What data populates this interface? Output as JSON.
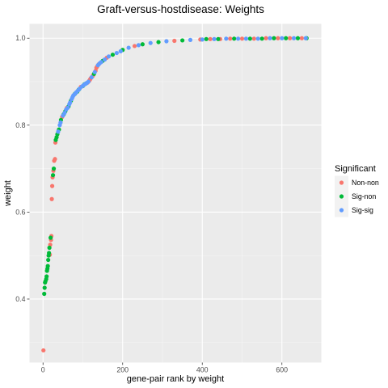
{
  "chart_data": {
    "type": "scatter",
    "title": "Graft-versus-hostdisease: Weights",
    "xlabel": "gene-pair rank by weight",
    "ylabel": "weight",
    "xlim": [
      -34,
      699
    ],
    "ylim": [
      0.254,
      1.033
    ],
    "xticks": [
      0,
      200,
      400,
      600
    ],
    "xtick_labels": [
      "0",
      "200",
      "400",
      "600"
    ],
    "yticks": [
      0.4,
      0.6,
      0.8,
      1.0
    ],
    "ytick_labels": [
      "0.4",
      "0.6",
      "0.8",
      "1.0"
    ],
    "grid": true,
    "panel_background": "#ebebeb",
    "legend": {
      "title": "Significant",
      "position": "right",
      "entries": [
        {
          "label": "Non-non",
          "color": "#f8766d"
        },
        {
          "label": "Sig-non",
          "color": "#00ba38"
        },
        {
          "label": "Sig-sig",
          "color": "#619cff"
        }
      ]
    },
    "series": [
      {
        "name": "Non-non",
        "color": "#f8766d",
        "points": [
          [
            1,
            0.282
          ],
          [
            17,
            0.502
          ],
          [
            18,
            0.525
          ],
          [
            20,
            0.536
          ],
          [
            21,
            0.545
          ],
          [
            22,
            0.63
          ],
          [
            23,
            0.66
          ],
          [
            24,
            0.68
          ],
          [
            26,
            0.695
          ],
          [
            28,
            0.718
          ],
          [
            30,
            0.722
          ],
          [
            31,
            0.76
          ],
          [
            48,
            0.819
          ],
          [
            60,
            0.84
          ],
          [
            95,
            0.888
          ],
          [
            112,
            0.898
          ],
          [
            116,
            0.902
          ],
          [
            118,
            0.905
          ],
          [
            120,
            0.908
          ],
          [
            124,
            0.912
          ],
          [
            126,
            0.915
          ],
          [
            132,
            0.925
          ],
          [
            134,
            0.932
          ],
          [
            136,
            0.935
          ],
          [
            140,
            0.94
          ],
          [
            160,
            0.955
          ],
          [
            230,
            0.982
          ],
          [
            330,
            0.994
          ],
          [
            395,
            0.997
          ],
          [
            420,
            0.998
          ],
          [
            445,
            0.998
          ],
          [
            470,
            0.999
          ],
          [
            500,
            0.999
          ],
          [
            530,
            0.999
          ],
          [
            560,
            1.0
          ],
          [
            590,
            1.0
          ],
          [
            620,
            1.0
          ],
          [
            650,
            1.0
          ]
        ]
      },
      {
        "name": "Sig-non",
        "color": "#00ba38",
        "points": [
          [
            3,
            0.412
          ],
          [
            4,
            0.426
          ],
          [
            5,
            0.438
          ],
          [
            6,
            0.441
          ],
          [
            8,
            0.446
          ],
          [
            9,
            0.452
          ],
          [
            10,
            0.465
          ],
          [
            11,
            0.47
          ],
          [
            12,
            0.476
          ],
          [
            13,
            0.49
          ],
          [
            14,
            0.5
          ],
          [
            15,
            0.506
          ],
          [
            16,
            0.518
          ],
          [
            19,
            0.541
          ],
          [
            25,
            0.685
          ],
          [
            27,
            0.7
          ],
          [
            32,
            0.766
          ],
          [
            34,
            0.772
          ],
          [
            36,
            0.779
          ],
          [
            40,
            0.79
          ],
          [
            45,
            0.812
          ],
          [
            52,
            0.825
          ],
          [
            56,
            0.832
          ],
          [
            64,
            0.843
          ],
          [
            70,
            0.856
          ],
          [
            80,
            0.872
          ],
          [
            86,
            0.877
          ],
          [
            90,
            0.882
          ],
          [
            100,
            0.89
          ],
          [
            104,
            0.894
          ],
          [
            108,
            0.896
          ],
          [
            128,
            0.918
          ],
          [
            150,
            0.948
          ],
          [
            175,
            0.962
          ],
          [
            200,
            0.973
          ],
          [
            250,
            0.986
          ],
          [
            290,
            0.991
          ],
          [
            350,
            0.995
          ],
          [
            410,
            0.998
          ],
          [
            440,
            0.998
          ],
          [
            480,
            0.999
          ],
          [
            520,
            0.999
          ],
          [
            550,
            0.999
          ],
          [
            580,
            1.0
          ],
          [
            610,
            1.0
          ],
          [
            640,
            1.0
          ],
          [
            662,
            1.0
          ]
        ]
      },
      {
        "name": "Sig-sig",
        "color": "#619cff",
        "points": [
          [
            38,
            0.785
          ],
          [
            42,
            0.8
          ],
          [
            44,
            0.806
          ],
          [
            50,
            0.822
          ],
          [
            54,
            0.828
          ],
          [
            58,
            0.836
          ],
          [
            62,
            0.84
          ],
          [
            66,
            0.848
          ],
          [
            68,
            0.852
          ],
          [
            72,
            0.86
          ],
          [
            74,
            0.864
          ],
          [
            76,
            0.868
          ],
          [
            78,
            0.87
          ],
          [
            82,
            0.874
          ],
          [
            84,
            0.876
          ],
          [
            88,
            0.88
          ],
          [
            92,
            0.884
          ],
          [
            98,
            0.889
          ],
          [
            102,
            0.892
          ],
          [
            106,
            0.895
          ],
          [
            110,
            0.897
          ],
          [
            114,
            0.9
          ],
          [
            122,
            0.91
          ],
          [
            130,
            0.922
          ],
          [
            138,
            0.938
          ],
          [
            142,
            0.942
          ],
          [
            146,
            0.945
          ],
          [
            155,
            0.951
          ],
          [
            165,
            0.958
          ],
          [
            185,
            0.966
          ],
          [
            195,
            0.97
          ],
          [
            215,
            0.978
          ],
          [
            240,
            0.984
          ],
          [
            270,
            0.989
          ],
          [
            310,
            0.993
          ],
          [
            370,
            0.996
          ],
          [
            400,
            0.997
          ],
          [
            430,
            0.998
          ],
          [
            460,
            0.999
          ],
          [
            490,
            0.999
          ],
          [
            510,
            0.999
          ],
          [
            540,
            0.999
          ],
          [
            570,
            1.0
          ],
          [
            600,
            1.0
          ],
          [
            630,
            1.0
          ],
          [
            660,
            1.0
          ]
        ]
      }
    ]
  }
}
